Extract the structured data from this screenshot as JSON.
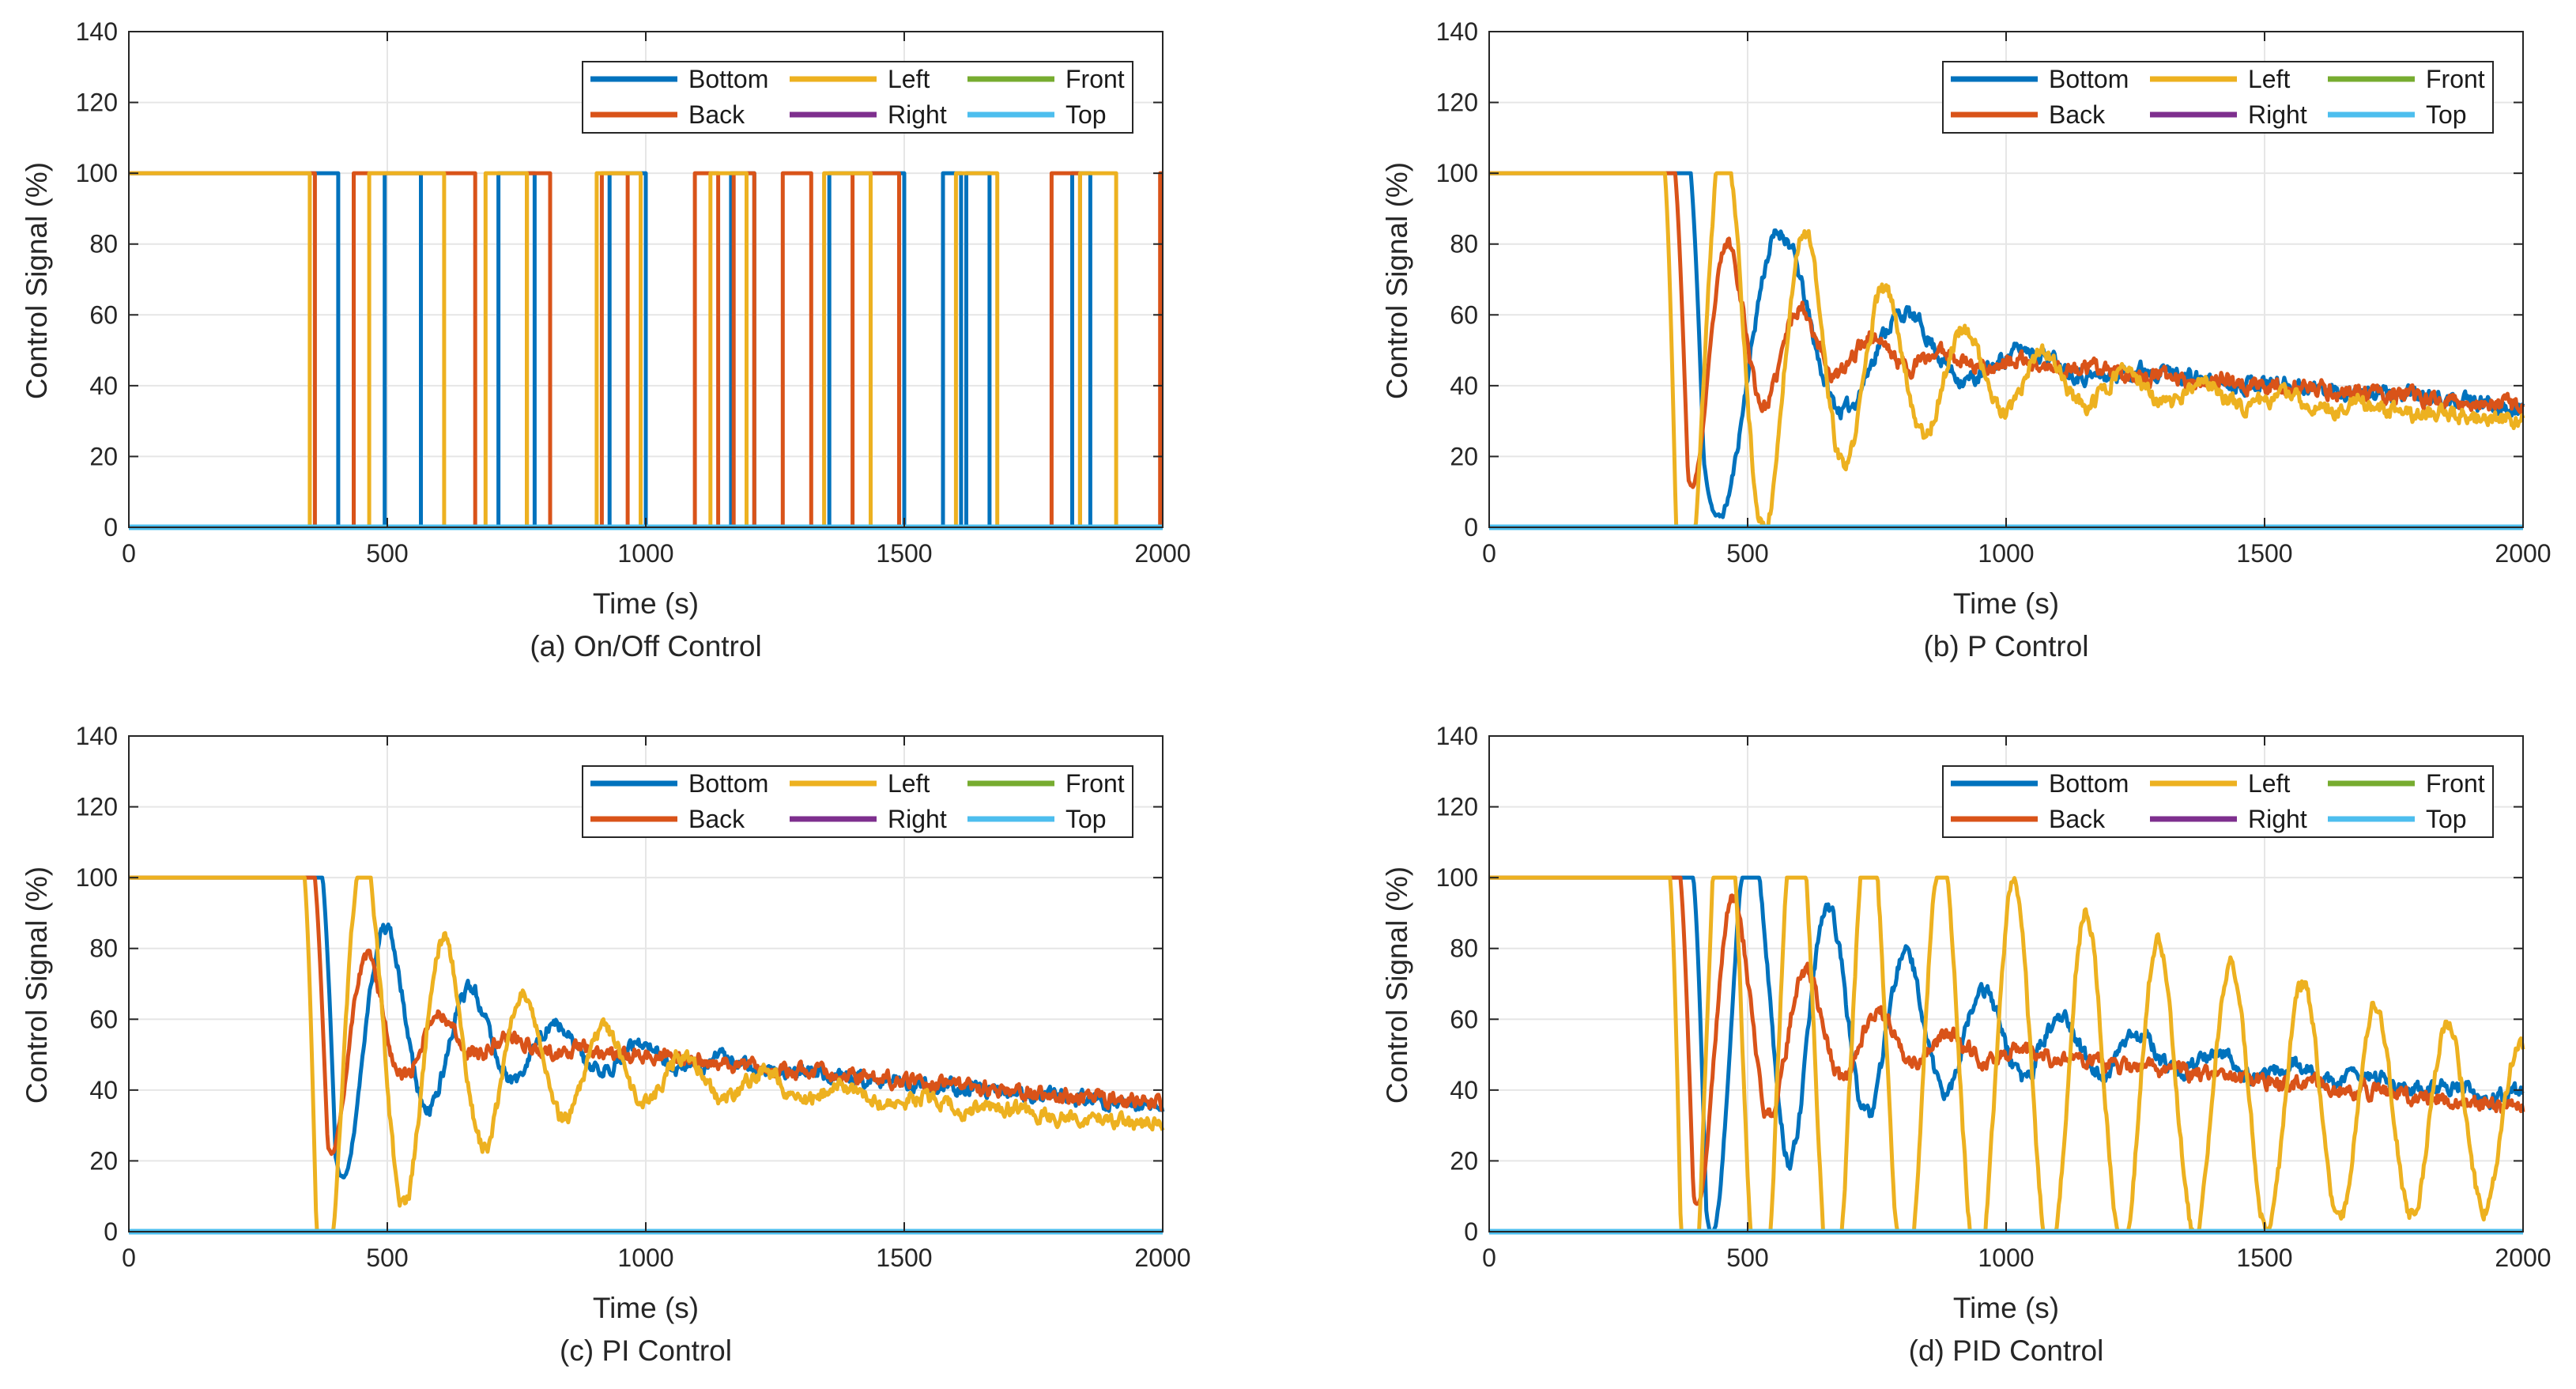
{
  "chart_data": [
    {
      "type": "line",
      "caption": "(a) On/Off Control",
      "xlabel": "Time (s)",
      "ylabel": "Control Signal (%)",
      "xlim": [
        0,
        2000
      ],
      "ylim": [
        0,
        140
      ],
      "xticks": [
        0,
        500,
        1000,
        1500,
        2000
      ],
      "yticks": [
        0,
        20,
        40,
        60,
        80,
        100,
        120,
        140
      ],
      "grid": true,
      "legend": {
        "location": "top-right",
        "columns": 3
      },
      "model": "onoff",
      "series": [
        {
          "name": "Bottom",
          "color": "#0072BD",
          "profile": "onoff",
          "high_intervals": [
            [
              0,
              405
            ],
            [
              495,
              565
            ],
            [
              715,
              785
            ],
            [
              930,
              1000
            ],
            [
              1165,
              1210
            ],
            [
              1355,
              1500
            ],
            [
              1575,
              1610
            ],
            [
              1620,
              1665
            ],
            [
              1825,
              1860
            ]
          ]
        },
        {
          "name": "Back",
          "color": "#D95319",
          "profile": "onoff",
          "high_intervals": [
            [
              0,
              360
            ],
            [
              435,
              670
            ],
            [
              770,
              815
            ],
            [
              915,
              965
            ],
            [
              1095,
              1140
            ],
            [
              1170,
              1210
            ],
            [
              1265,
              1320
            ],
            [
              1400,
              1490
            ],
            [
              1785,
              1840
            ],
            [
              1995,
              2000
            ]
          ]
        },
        {
          "name": "Left",
          "color": "#EDB120",
          "profile": "onoff",
          "high_intervals": [
            [
              0,
              350
            ],
            [
              465,
              610
            ],
            [
              690,
              770
            ],
            [
              905,
              990
            ],
            [
              1125,
              1195
            ],
            [
              1345,
              1435
            ],
            [
              1600,
              1680
            ],
            [
              1840,
              1910
            ]
          ]
        },
        {
          "name": "Right",
          "color": "#7E2F8E",
          "profile": "zero"
        },
        {
          "name": "Front",
          "color": "#77AC30",
          "profile": "zero"
        },
        {
          "name": "Top",
          "color": "#4DBEEE",
          "profile": "zero"
        }
      ]
    },
    {
      "type": "line",
      "caption": "(b) P Control",
      "xlabel": "Time (s)",
      "ylabel": "Control Signal (%)",
      "xlim": [
        0,
        2000
      ],
      "ylim": [
        0,
        140
      ],
      "xticks": [
        0,
        500,
        1000,
        1500,
        2000
      ],
      "yticks": [
        0,
        20,
        40,
        60,
        80,
        100,
        120,
        140
      ],
      "grid": true,
      "legend": {
        "location": "top-right",
        "columns": 3
      },
      "series": [
        {
          "name": "Bottom",
          "color": "#0072BD",
          "profile": "oscillation",
          "t0": 390,
          "period": 240,
          "amplitude": 66,
          "decay_tau": 230,
          "final_start": 55,
          "final_end": 34,
          "noise": 2.6,
          "seed": 11
        },
        {
          "name": "Back",
          "color": "#D95319",
          "profile": "oscillation",
          "t0": 360,
          "period": 140,
          "amplitude": 52,
          "decay_tau": 160,
          "final_start": 54,
          "final_end": 34,
          "noise": 2.6,
          "seed": 23
        },
        {
          "name": "Left",
          "color": "#EDB120",
          "profile": "oscillation",
          "t0": 340,
          "period": 155,
          "amplitude": 92,
          "decay_tau": 300,
          "final_start": 50,
          "final_end": 30,
          "noise": 2.6,
          "seed": 37
        },
        {
          "name": "Right",
          "color": "#7E2F8E",
          "profile": "zero"
        },
        {
          "name": "Front",
          "color": "#77AC30",
          "profile": "zero"
        },
        {
          "name": "Top",
          "color": "#4DBEEE",
          "profile": "zero"
        }
      ]
    },
    {
      "type": "line",
      "caption": "(c) PI Control",
      "xlabel": "Time (s)",
      "ylabel": "Control Signal (%)",
      "xlim": [
        0,
        2000
      ],
      "ylim": [
        0,
        140
      ],
      "xticks": [
        0,
        500,
        1000,
        1500,
        2000
      ],
      "yticks": [
        0,
        20,
        40,
        60,
        80,
        100,
        120,
        140
      ],
      "grid": true,
      "legend": {
        "location": "top-right",
        "columns": 3
      },
      "series": [
        {
          "name": "Bottom",
          "color": "#0072BD",
          "profile": "oscillation",
          "t0": 375,
          "period": 165,
          "amplitude": 50,
          "decay_tau": 230,
          "final_start": 58,
          "final_end": 35,
          "noise": 2.4,
          "seed": 41
        },
        {
          "name": "Back",
          "color": "#D95319",
          "profile": "oscillation",
          "t0": 360,
          "period": 140,
          "amplitude": 46,
          "decay_tau": 130,
          "final_start": 58,
          "final_end": 36,
          "noise": 2.4,
          "seed": 53
        },
        {
          "name": "Left",
          "color": "#EDB120",
          "profile": "oscillation",
          "t0": 340,
          "period": 155,
          "amplitude": 84,
          "decay_tau": 290,
          "final_start": 54,
          "final_end": 30,
          "noise": 2.4,
          "seed": 67
        },
        {
          "name": "Right",
          "color": "#7E2F8E",
          "profile": "zero"
        },
        {
          "name": "Front",
          "color": "#77AC30",
          "profile": "zero"
        },
        {
          "name": "Top",
          "color": "#4DBEEE",
          "profile": "zero"
        }
      ]
    },
    {
      "type": "line",
      "caption": "(d) PID Control",
      "xlabel": "Time (s)",
      "ylabel": "Control Signal (%)",
      "xlim": [
        0,
        2000
      ],
      "ylim": [
        0,
        140
      ],
      "xticks": [
        0,
        500,
        1000,
        1500,
        2000
      ],
      "yticks": [
        0,
        20,
        40,
        60,
        80,
        100,
        120,
        140
      ],
      "grid": true,
      "legend": {
        "location": "top-right",
        "columns": 3
      },
      "series": [
        {
          "name": "Bottom",
          "color": "#0072BD",
          "profile": "oscillation",
          "t0": 395,
          "period": 150,
          "amplitude": 72,
          "decay_tau": 330,
          "final_start": 64,
          "final_end": 38,
          "noise": 2.6,
          "seed": 71
        },
        {
          "name": "Back",
          "color": "#D95319",
          "profile": "oscillation",
          "t0": 370,
          "period": 140,
          "amplitude": 62,
          "decay_tau": 190,
          "final_start": 60,
          "final_end": 35,
          "noise": 2.6,
          "seed": 83
        },
        {
          "name": "Left",
          "color": "#EDB120",
          "profile": "oscillation",
          "t0": 350,
          "period": 140,
          "amplitude": 94,
          "decay_tau": 1200,
          "final_start": 54,
          "final_end": 30,
          "noise": 2.4,
          "seed": 97
        },
        {
          "name": "Right",
          "color": "#7E2F8E",
          "profile": "zero"
        },
        {
          "name": "Front",
          "color": "#77AC30",
          "profile": "zero"
        },
        {
          "name": "Top",
          "color": "#4DBEEE",
          "profile": "zero"
        }
      ]
    }
  ]
}
